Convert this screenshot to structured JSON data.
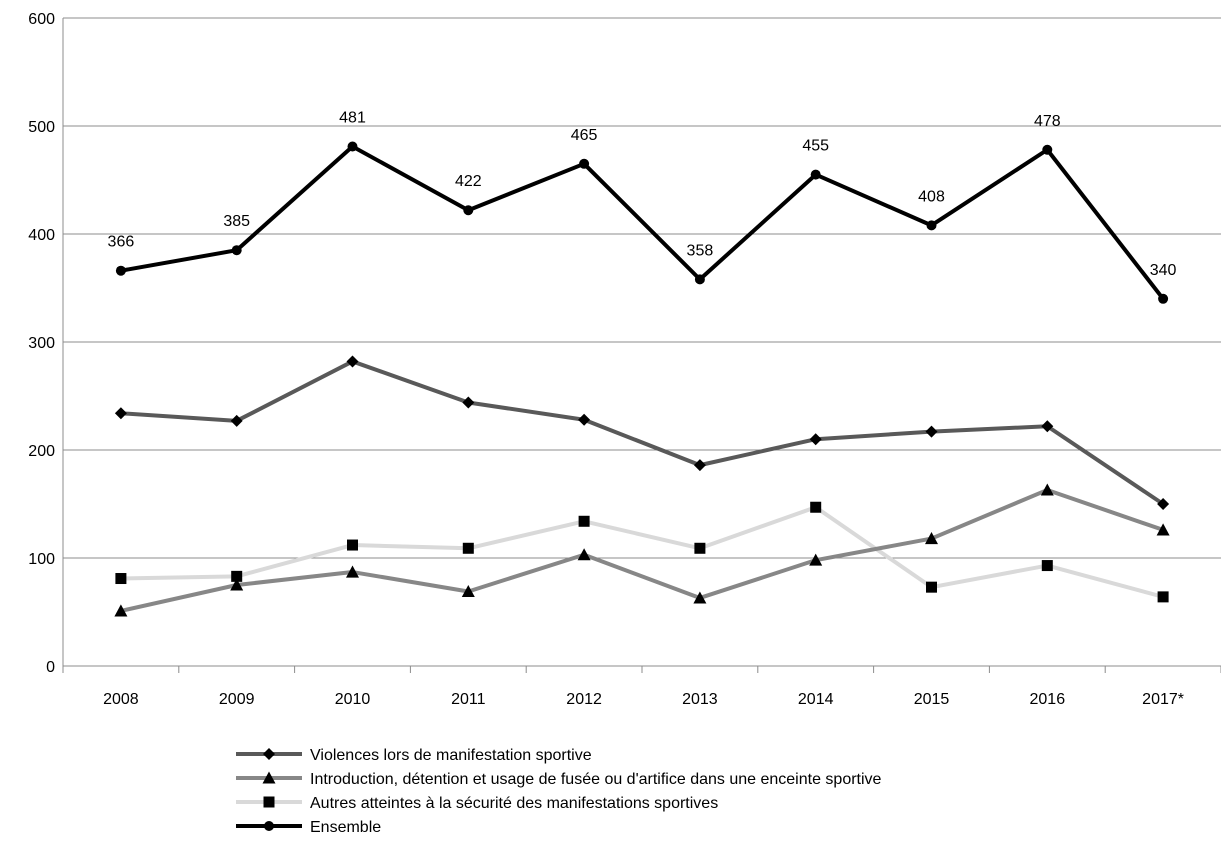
{
  "chart_data": {
    "type": "line",
    "title": "",
    "xlabel": "",
    "ylabel": "",
    "categories": [
      "2008",
      "2009",
      "2010",
      "2011",
      "2012",
      "2013",
      "2014",
      "2015",
      "2016",
      "2017*"
    ],
    "ylim": [
      0,
      600
    ],
    "yticks": [
      0,
      100,
      200,
      300,
      400,
      500,
      600
    ],
    "grid": true,
    "legend_position": "bottom",
    "series": [
      {
        "name": "Violences lors de manifestation sportive",
        "values": [
          234,
          227,
          282,
          244,
          228,
          186,
          210,
          217,
          222,
          150
        ],
        "color": "#595959",
        "marker": "diamond",
        "data_labels": false
      },
      {
        "name": "Introduction, détention et usage de fusée ou d'artifice dans une enceinte sportive",
        "values": [
          51,
          75,
          87,
          69,
          103,
          63,
          98,
          118,
          163,
          126
        ],
        "color": "#878787",
        "marker": "triangle",
        "data_labels": false
      },
      {
        "name": "Autres atteintes à la sécurité des manifestations sportives",
        "values": [
          81,
          83,
          112,
          109,
          134,
          109,
          147,
          73,
          93,
          64
        ],
        "color": "#d9d9d9",
        "marker": "square",
        "data_labels": false
      },
      {
        "name": "Ensemble",
        "values": [
          366,
          385,
          481,
          422,
          465,
          358,
          455,
          408,
          478,
          340
        ],
        "color": "#000000",
        "marker": "circle",
        "data_labels": true
      }
    ]
  }
}
